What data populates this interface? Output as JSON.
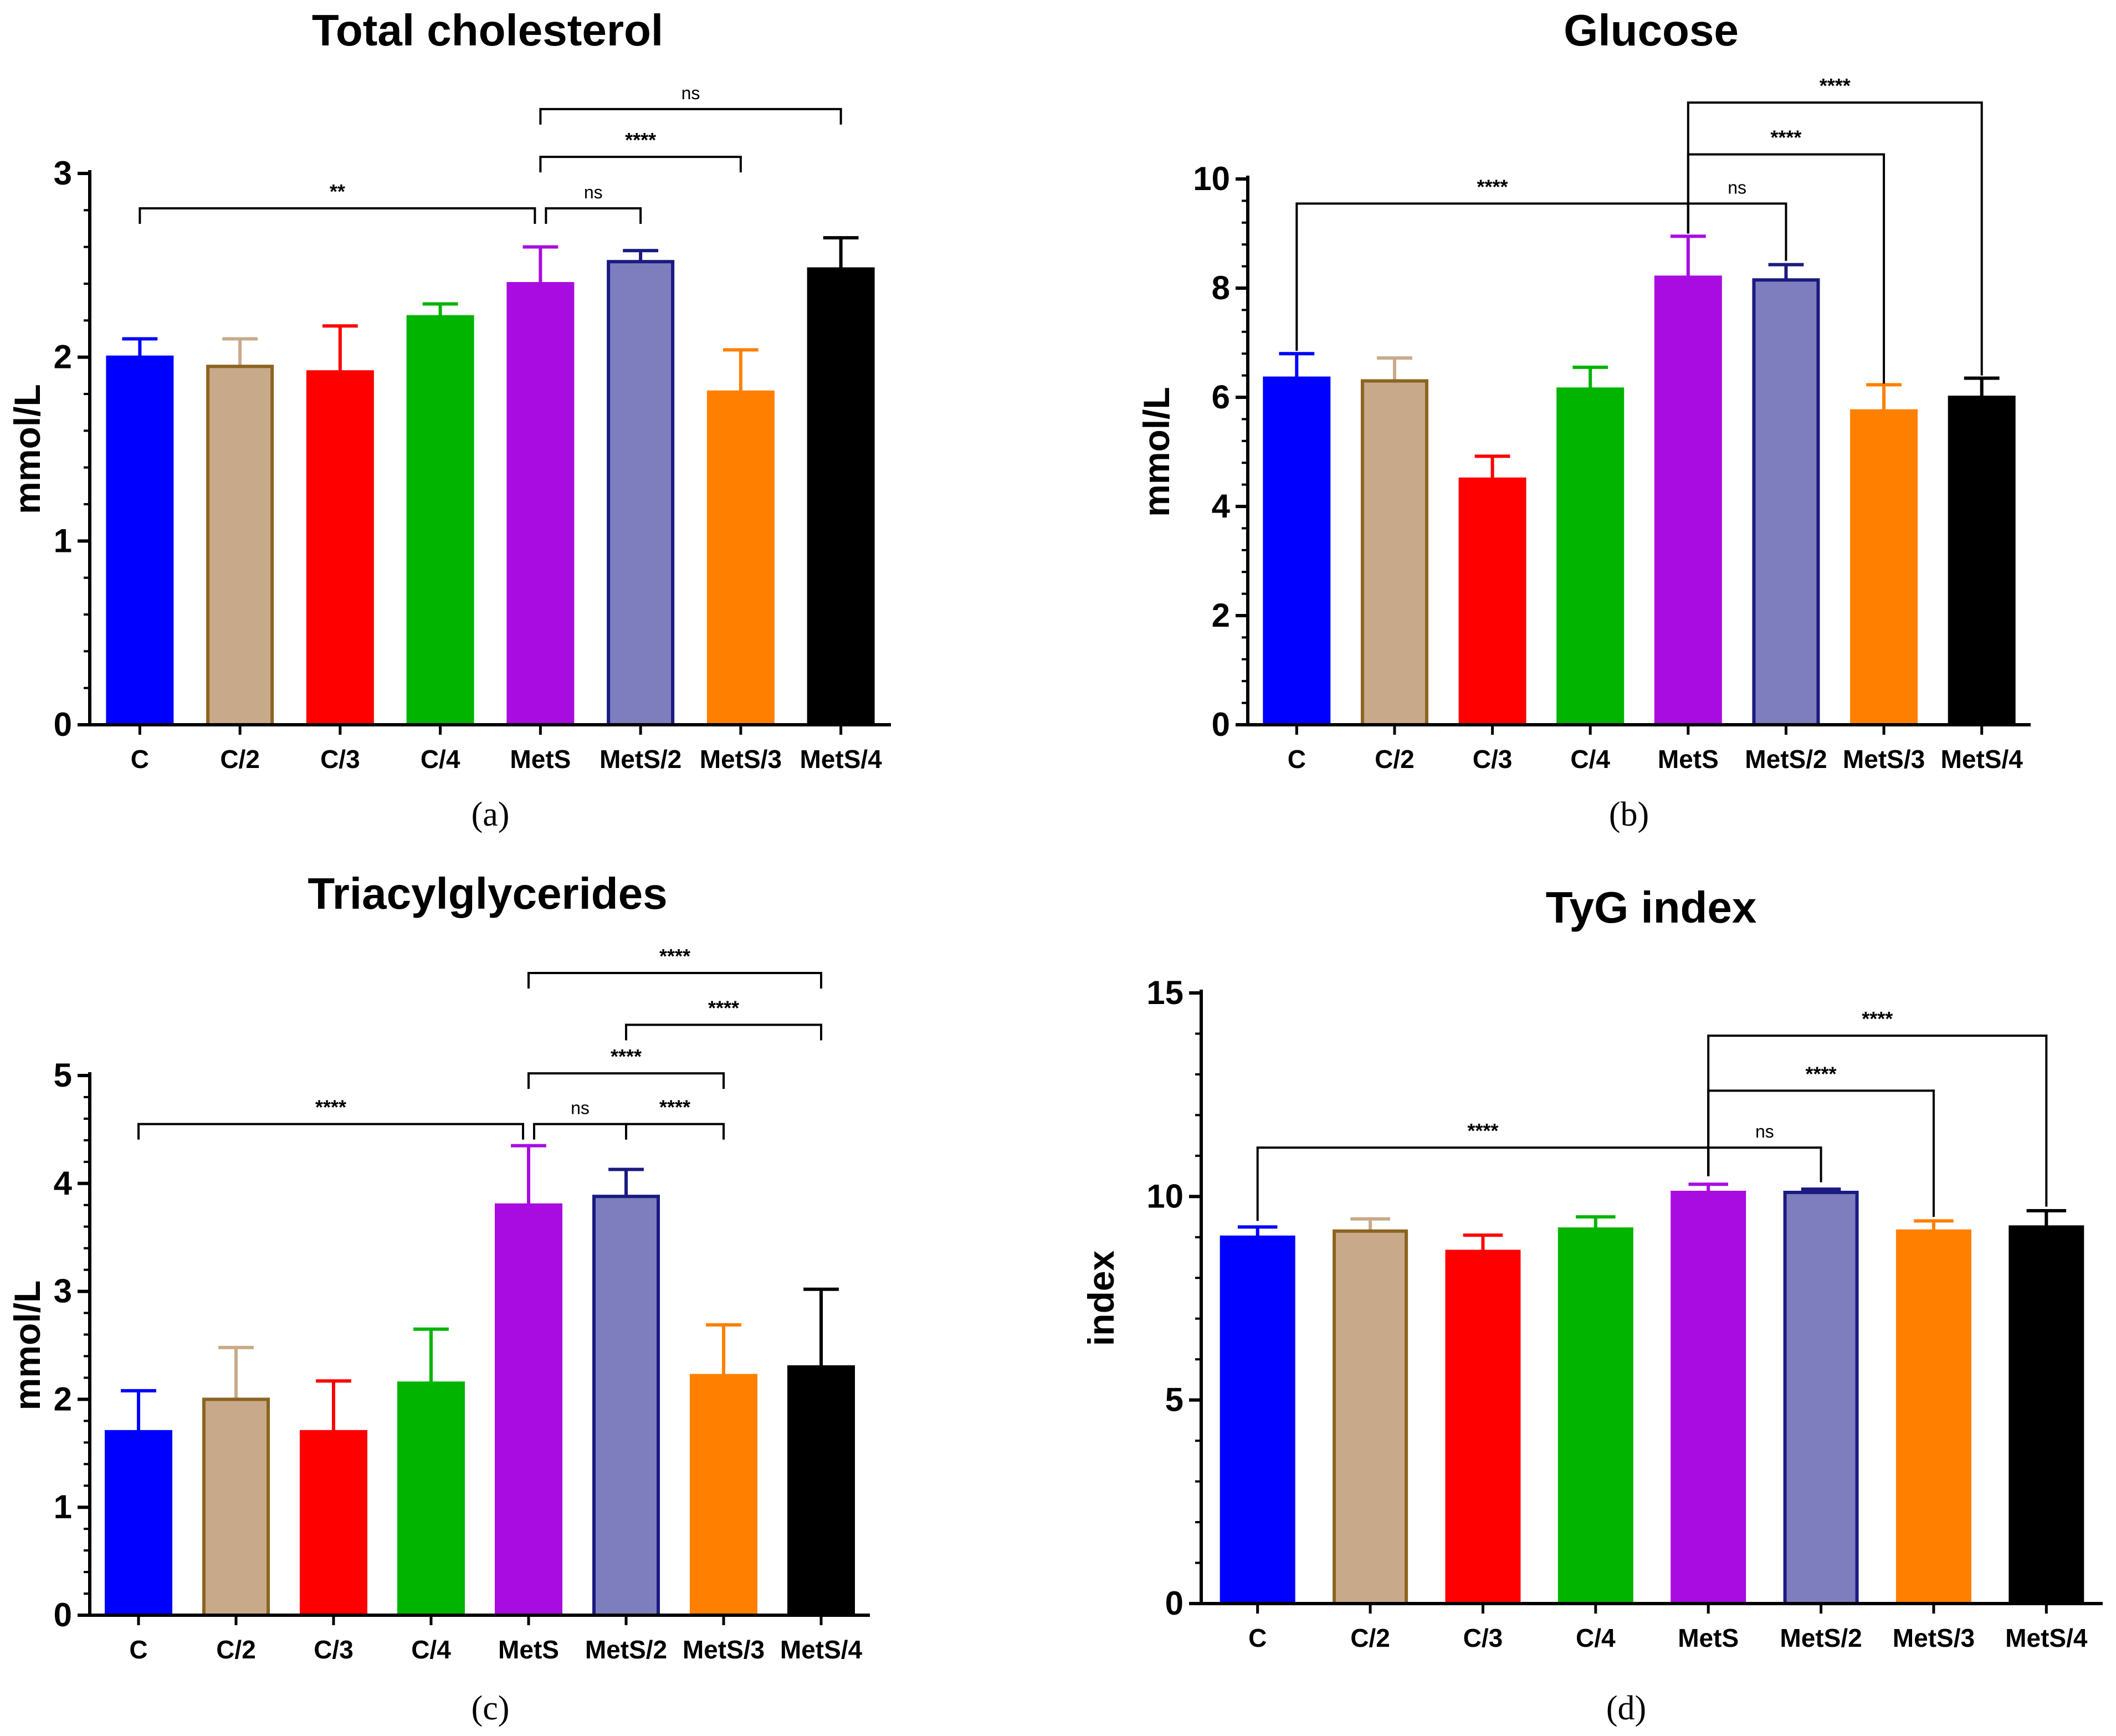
{
  "chart_data": [
    {
      "type": "bar",
      "panel": "(a)",
      "title": "Total cholesterol",
      "ylabel": "mmol/L",
      "xlabel": "",
      "ylim": [
        0,
        3
      ],
      "yticks": [
        0,
        1,
        2,
        3
      ],
      "yticks_labels": [
        "0",
        "1",
        "2",
        "3"
      ],
      "categories": [
        "C",
        "C/2",
        "C/3",
        "C/4",
        "MetS",
        "MetS/2",
        "MetS/3",
        "MetS/4"
      ],
      "values": [
        2.0,
        1.95,
        1.92,
        2.22,
        2.4,
        2.52,
        1.81,
        2.48
      ],
      "errors": [
        0.1,
        0.15,
        0.25,
        0.07,
        0.2,
        0.06,
        0.23,
        0.17
      ],
      "colors": [
        "#0000ff",
        "#c8aa8a",
        "#ff0000",
        "#00b400",
        "#a80ce0",
        "#7e7ebe",
        "#ff8000",
        "#000000"
      ],
      "edge_colors": [
        "#0000ff",
        "#8c6420",
        "#ff0000",
        "#00b400",
        "#a80ce0",
        "#1a1a80",
        "#ff8000",
        "#000000"
      ],
      "error_colors": [
        "#0000ff",
        "#c8aa8a",
        "#ff0000",
        "#00b400",
        "#a80ce0",
        "#1a1a80",
        "#ff8000",
        "#000000"
      ],
      "comparisons": [
        {
          "from": 0,
          "to": 4,
          "label": "**",
          "level": 2.81
        },
        {
          "from": 4,
          "to": 5,
          "label": "ns",
          "level": 2.81
        },
        {
          "from": 4,
          "to": 6,
          "label": "****",
          "level": 3.09
        },
        {
          "from": 4,
          "to": 7,
          "label": "ns",
          "level": 3.35
        }
      ]
    },
    {
      "type": "bar",
      "panel": "(b)",
      "title": "Glucose",
      "ylabel": "mmol/L",
      "xlabel": "",
      "ylim": [
        0,
        10
      ],
      "yticks": [
        0,
        2,
        4,
        6,
        8,
        10
      ],
      "yticks_labels": [
        "0",
        "2",
        "4",
        "6",
        "8",
        "10"
      ],
      "categories": [
        "C",
        "C/2",
        "C/3",
        "C/4",
        "MetS",
        "MetS/2",
        "MetS/3",
        "MetS/4"
      ],
      "values": [
        6.35,
        6.3,
        4.5,
        6.15,
        8.2,
        8.15,
        5.75,
        6.0
      ],
      "errors": [
        0.45,
        0.42,
        0.42,
        0.4,
        0.75,
        0.28,
        0.48,
        0.35
      ],
      "colors": [
        "#0000ff",
        "#c8aa8a",
        "#ff0000",
        "#00b400",
        "#a80ce0",
        "#7e7ebe",
        "#ff8000",
        "#000000"
      ],
      "edge_colors": [
        "#0000ff",
        "#8c6420",
        "#ff0000",
        "#00b400",
        "#a80ce0",
        "#1a1a80",
        "#ff8000",
        "#000000"
      ],
      "error_colors": [
        "#0000ff",
        "#c8aa8a",
        "#ff0000",
        "#00b400",
        "#a80ce0",
        "#1a1a80",
        "#ff8000",
        "#000000"
      ],
      "comparisons": [
        {
          "from": 0,
          "to": 4,
          "label": "****",
          "level": 9.55,
          "drop_to": [
            6.85,
            9.0
          ]
        },
        {
          "from": 4,
          "to": 5,
          "label": "ns",
          "level": 9.55,
          "drop_to": [
            9.0,
            8.5
          ]
        },
        {
          "from": 4,
          "to": 6,
          "label": "****",
          "level": 10.45,
          "drop_to": [
            9.0,
            6.25
          ]
        },
        {
          "from": 4,
          "to": 7,
          "label": "****",
          "level": 11.4,
          "drop_to": [
            9.0,
            6.4
          ]
        }
      ]
    },
    {
      "type": "bar",
      "panel": "(c)",
      "title": "Triacylglycerides",
      "ylabel": "mmol/L",
      "xlabel": "",
      "ylim": [
        0,
        5
      ],
      "yticks": [
        0,
        1,
        2,
        3,
        4,
        5
      ],
      "yticks_labels": [
        "0",
        "1",
        "2",
        "3",
        "4",
        "5"
      ],
      "categories": [
        "C",
        "C/2",
        "C/3",
        "C/4",
        "MetS",
        "MetS/2",
        "MetS/3",
        "MetS/4"
      ],
      "values": [
        1.7,
        2.0,
        1.7,
        2.15,
        3.8,
        3.88,
        2.22,
        2.3
      ],
      "errors": [
        0.38,
        0.48,
        0.47,
        0.5,
        0.55,
        0.25,
        0.47,
        0.72
      ],
      "colors": [
        "#0000ff",
        "#c8aa8a",
        "#ff0000",
        "#00b400",
        "#a80ce0",
        "#7e7ebe",
        "#ff8000",
        "#000000"
      ],
      "edge_colors": [
        "#0000ff",
        "#8c6420",
        "#ff0000",
        "#00b400",
        "#a80ce0",
        "#1a1a80",
        "#ff8000",
        "#000000"
      ],
      "error_colors": [
        "#0000ff",
        "#c8aa8a",
        "#ff0000",
        "#00b400",
        "#a80ce0",
        "#1a1a80",
        "#ff8000",
        "#000000"
      ],
      "comparisons": [
        {
          "from": 0,
          "to": 4,
          "label": "****",
          "level": 4.55
        },
        {
          "from": 4,
          "to": 5,
          "label": "ns",
          "level": 4.55
        },
        {
          "from": 5,
          "to": 6,
          "label": "****",
          "level": 4.55
        },
        {
          "from": 4,
          "to": 6,
          "label": "****",
          "level": 5.02
        },
        {
          "from": 5,
          "to": 7,
          "label": "****",
          "level": 5.47
        },
        {
          "from": 4,
          "to": 7,
          "label": "****",
          "level": 5.95
        }
      ]
    },
    {
      "type": "bar",
      "panel": "(d)",
      "title": "TyG index",
      "ylabel": "index",
      "xlabel": "",
      "ylim": [
        0,
        15
      ],
      "yticks": [
        0,
        5,
        10,
        15
      ],
      "yticks_labels": [
        "0",
        "5",
        "10",
        "15"
      ],
      "categories": [
        "C",
        "C/2",
        "C/3",
        "C/4",
        "MetS",
        "MetS/2",
        "MetS/3",
        "MetS/4"
      ],
      "values": [
        9.0,
        9.15,
        8.65,
        9.2,
        10.1,
        10.1,
        9.15,
        9.25
      ],
      "errors": [
        0.25,
        0.3,
        0.4,
        0.3,
        0.2,
        0.08,
        0.25,
        0.4
      ],
      "colors": [
        "#0000ff",
        "#c8aa8a",
        "#ff0000",
        "#00b400",
        "#a80ce0",
        "#7e7ebe",
        "#ff8000",
        "#000000"
      ],
      "edge_colors": [
        "#0000ff",
        "#8c6420",
        "#ff0000",
        "#00b400",
        "#a80ce0",
        "#1a1a80",
        "#ff8000",
        "#000000"
      ],
      "error_colors": [
        "#0000ff",
        "#c8aa8a",
        "#ff0000",
        "#00b400",
        "#a80ce0",
        "#1a1a80",
        "#ff8000",
        "#000000"
      ],
      "comparisons": [
        {
          "from": 0,
          "to": 4,
          "label": "****",
          "level": 11.2,
          "drop_to": [
            9.4,
            10.5
          ]
        },
        {
          "from": 4,
          "to": 5,
          "label": "ns",
          "level": 11.2,
          "drop_to": [
            10.5,
            10.35
          ]
        },
        {
          "from": 4,
          "to": 6,
          "label": "****",
          "level": 12.6,
          "drop_to": [
            10.5,
            9.5
          ]
        },
        {
          "from": 4,
          "to": 7,
          "label": "****",
          "level": 13.95,
          "drop_to": [
            10.5,
            9.75
          ]
        }
      ]
    }
  ]
}
